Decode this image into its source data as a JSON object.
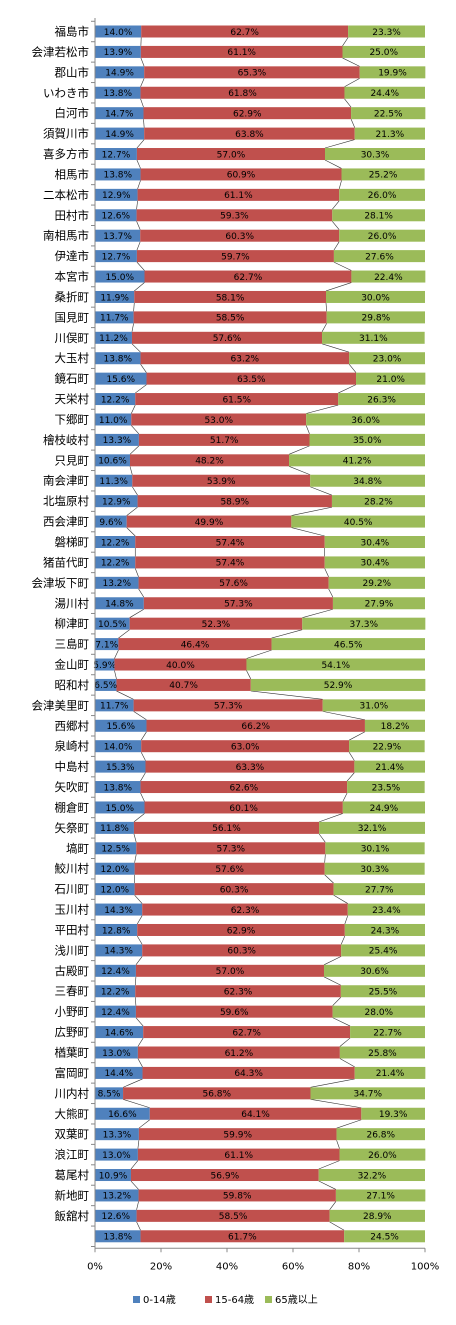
{
  "chart_data": {
    "type": "bar",
    "orientation": "horizontal",
    "stacked": "percent",
    "categories": [
      "福島市",
      "会津若松市",
      "郡山市",
      "いわき市",
      "白河市",
      "須賀川市",
      "喜多方市",
      "相馬市",
      "二本松市",
      "田村市",
      "南相馬市",
      "伊達市",
      "本宮市",
      "桑折町",
      "国見町",
      "川俣町",
      "大玉村",
      "鏡石町",
      "天栄村",
      "下郷町",
      "檜枝岐村",
      "只見町",
      "南会津町",
      "北塩原村",
      "西会津町",
      "磐梯町",
      "猪苗代町",
      "会津坂下町",
      "湯川村",
      "柳津町",
      "三島町",
      "金山町",
      "昭和村",
      "会津美里町",
      "西郷村",
      "泉崎村",
      "中島村",
      "矢吹町",
      "棚倉町",
      "矢祭町",
      "塙町",
      "鮫川村",
      "石川町",
      "玉川村",
      "平田村",
      "浅川町",
      "古殿町",
      "三春町",
      "小野町",
      "広野町",
      "楢葉町",
      "富岡町",
      "川内村",
      "大熊町",
      "双葉町",
      "浪江町",
      "葛尾村",
      "新地町",
      "飯舘村",
      ""
    ],
    "series": [
      {
        "name": "0-14歳",
        "color": "#4f81bd",
        "values": [
          14.0,
          13.9,
          14.9,
          13.8,
          14.7,
          14.9,
          12.7,
          13.8,
          12.9,
          12.6,
          13.7,
          12.7,
          15.0,
          11.9,
          11.7,
          11.2,
          13.8,
          15.6,
          12.2,
          11.0,
          13.3,
          10.6,
          11.3,
          12.9,
          9.6,
          12.2,
          12.2,
          13.2,
          14.8,
          10.5,
          7.1,
          5.9,
          6.5,
          11.7,
          15.6,
          14.0,
          15.3,
          13.8,
          15.0,
          11.8,
          12.5,
          12.0,
          12.0,
          14.3,
          12.8,
          14.3,
          12.4,
          12.2,
          12.4,
          14.6,
          13.0,
          14.4,
          8.5,
          16.6,
          13.3,
          13.0,
          10.9,
          13.2,
          12.6,
          13.8
        ]
      },
      {
        "name": "15-64歳",
        "color": "#c0504d",
        "values": [
          62.7,
          61.1,
          65.3,
          61.8,
          62.9,
          63.8,
          57.0,
          60.9,
          61.1,
          59.3,
          60.3,
          59.7,
          62.7,
          58.1,
          58.5,
          57.6,
          63.2,
          63.5,
          61.5,
          53.0,
          51.7,
          48.2,
          53.9,
          58.9,
          49.9,
          57.4,
          57.4,
          57.6,
          57.3,
          52.3,
          46.4,
          40.0,
          40.7,
          57.3,
          66.2,
          63.0,
          63.3,
          62.6,
          60.1,
          56.1,
          57.3,
          57.6,
          60.3,
          62.3,
          62.9,
          60.3,
          57.0,
          62.3,
          59.6,
          62.7,
          61.2,
          64.3,
          56.8,
          64.1,
          59.9,
          61.1,
          56.9,
          59.8,
          58.5,
          61.7
        ]
      },
      {
        "name": "65歳以上",
        "color": "#9bbb59",
        "values": [
          23.3,
          25.0,
          19.9,
          24.4,
          22.5,
          21.3,
          30.3,
          25.2,
          26.0,
          28.1,
          26.0,
          27.6,
          22.4,
          30.0,
          29.8,
          31.1,
          23.0,
          21.0,
          26.3,
          36.0,
          35.0,
          41.2,
          34.8,
          28.2,
          40.5,
          30.4,
          30.4,
          29.2,
          27.9,
          37.3,
          46.5,
          54.1,
          52.9,
          31.0,
          18.2,
          22.9,
          21.4,
          23.5,
          24.9,
          32.1,
          30.1,
          30.3,
          27.7,
          23.4,
          24.3,
          25.4,
          30.6,
          25.5,
          28.0,
          22.7,
          25.8,
          21.4,
          34.7,
          19.3,
          26.8,
          26.0,
          32.2,
          27.1,
          28.9,
          24.5
        ]
      }
    ],
    "x_ticks": [
      "0%",
      "20%",
      "40%",
      "60%",
      "80%",
      "100%"
    ],
    "xlim": [
      0,
      100
    ],
    "legend": "bottom",
    "grid": false
  }
}
